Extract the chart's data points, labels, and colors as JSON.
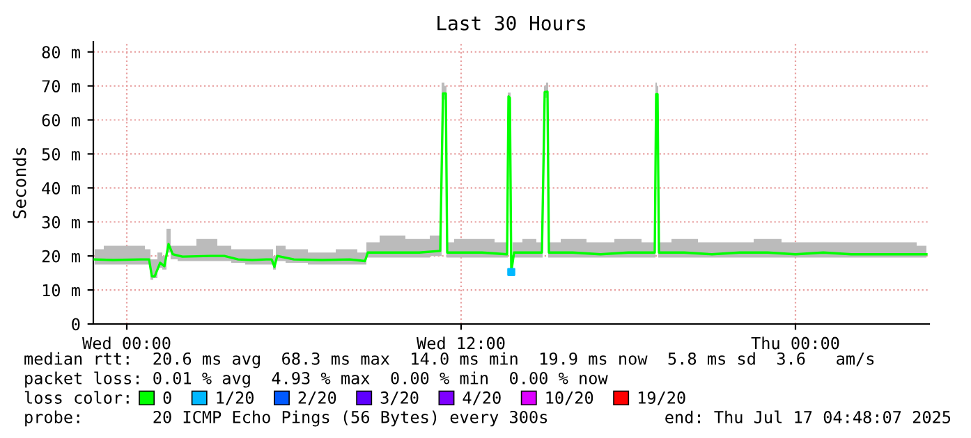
{
  "chart_data": {
    "type": "line",
    "title": "Last 30 Hours",
    "ylabel": "Seconds",
    "x": [
      "2025-07-15T22:51",
      "2025-07-15T23:30",
      "2025-07-16T00:30",
      "2025-07-16T00:48",
      "2025-07-16T00:54",
      "2025-07-16T01:00",
      "2025-07-16T01:12",
      "2025-07-16T01:21",
      "2025-07-16T01:30",
      "2025-07-16T01:39",
      "2025-07-16T02:00",
      "2025-07-16T03:00",
      "2025-07-16T03:30",
      "2025-07-16T04:00",
      "2025-07-16T04:30",
      "2025-07-16T05:00",
      "2025-07-16T05:12",
      "2025-07-16T05:18",
      "2025-07-16T05:24",
      "2025-07-16T06:00",
      "2025-07-16T07:00",
      "2025-07-16T08:00",
      "2025-07-16T08:33",
      "2025-07-16T08:39",
      "2025-07-16T09:30",
      "2025-07-16T10:30",
      "2025-07-16T11:15",
      "2025-07-16T11:21",
      "2025-07-16T11:27",
      "2025-07-16T11:30",
      "2025-07-16T12:00",
      "2025-07-16T12:45",
      "2025-07-16T13:39",
      "2025-07-16T13:42",
      "2025-07-16T13:45",
      "2025-07-16T13:48",
      "2025-07-16T13:54",
      "2025-07-16T14:30",
      "2025-07-16T14:54",
      "2025-07-16T14:57",
      "2025-07-16T15:00",
      "2025-07-16T15:06",
      "2025-07-16T15:09",
      "2025-07-16T16:00",
      "2025-07-16T17:00",
      "2025-07-16T18:00",
      "2025-07-16T18:57",
      "2025-07-16T19:00",
      "2025-07-16T19:03",
      "2025-07-16T19:06",
      "2025-07-16T20:00",
      "2025-07-16T21:00",
      "2025-07-16T22:00",
      "2025-07-16T23:00",
      "2025-07-17T00:00",
      "2025-07-17T01:00",
      "2025-07-17T02:00",
      "2025-07-17T03:00",
      "2025-07-17T04:00",
      "2025-07-17T04:42"
    ],
    "series": [
      {
        "name": "0",
        "color": "#00ff00",
        "values": [
          19.0,
          18.8,
          19.0,
          19.0,
          14.0,
          14.0,
          18.0,
          17.0,
          23.5,
          20.5,
          19.8,
          20.0,
          20.0,
          19.0,
          18.8,
          19.0,
          19.0,
          16.8,
          20.0,
          19.0,
          18.8,
          19.0,
          18.5,
          21.0,
          21.0,
          21.0,
          21.5,
          67.8,
          67.8,
          21.0,
          21.0,
          21.0,
          20.5,
          66.9,
          66.5,
          15.3,
          21.0,
          21.0,
          21.0,
          44.3,
          68.2,
          68.3,
          21.0,
          21.0,
          20.5,
          21.0,
          21.0,
          67.6,
          67.6,
          21.0,
          21.0,
          20.5,
          21.0,
          21.0,
          20.5,
          21.0,
          20.5,
          20.5,
          20.5,
          20.5
        ],
        "lower": [
          17.5,
          17.5,
          17.5,
          17.5,
          13.0,
          13.5,
          16.5,
          16.0,
          21.0,
          19.0,
          18.5,
          18.5,
          18.5,
          18.0,
          17.5,
          17.5,
          17.5,
          16.0,
          18.5,
          18.0,
          17.5,
          17.5,
          17.5,
          19.5,
          19.5,
          19.5,
          20.0,
          66.0,
          66.0,
          19.5,
          19.5,
          19.5,
          19.5,
          65.0,
          65.0,
          14.5,
          19.5,
          19.5,
          19.5,
          43.0,
          66.5,
          66.5,
          19.5,
          19.5,
          19.5,
          19.5,
          19.5,
          66.0,
          66.0,
          19.5,
          19.5,
          19.5,
          19.5,
          19.5,
          19.5,
          19.5,
          19.5,
          19.5,
          19.5,
          19.5
        ],
        "upper": [
          22,
          23,
          23,
          22,
          19,
          19,
          21,
          20,
          28,
          23,
          23,
          25,
          23,
          22,
          22,
          22,
          22,
          20,
          23,
          22,
          21,
          22,
          21,
          24,
          26,
          25,
          26,
          71,
          70,
          24,
          25,
          25,
          24,
          68,
          68,
          17,
          24,
          25,
          24,
          46,
          70,
          71,
          24,
          25,
          24,
          25,
          24,
          71,
          70,
          24,
          25,
          24,
          24,
          25,
          24,
          24,
          24,
          24,
          24,
          23
        ]
      },
      {
        "name": "1/20",
        "color": "#00b8ff",
        "type": "scatter",
        "marker": "square",
        "x": [
          "2025-07-16T13:48"
        ],
        "values": [
          15.3
        ]
      },
      {
        "name": "2/20",
        "color": "#0059ff",
        "values": [
          null,
          null,
          null,
          null,
          null,
          null,
          null,
          null,
          null,
          null,
          null,
          null,
          null,
          null,
          null,
          null,
          null,
          null,
          null,
          null,
          null,
          null,
          null,
          null,
          null,
          null,
          null,
          null,
          null,
          null,
          null,
          null,
          null,
          null,
          null,
          null,
          null,
          null,
          null,
          null,
          null,
          null,
          null,
          null,
          null,
          null,
          null,
          null,
          null,
          null,
          null,
          null,
          null,
          null,
          null,
          null,
          null,
          null,
          null,
          null
        ]
      },
      {
        "name": "3/20",
        "color": "#5e00ff",
        "values": [
          null,
          null,
          null,
          null,
          null,
          null,
          null,
          null,
          null,
          null,
          null,
          null,
          null,
          null,
          null,
          null,
          null,
          null,
          null,
          null,
          null,
          null,
          null,
          null,
          null,
          null,
          null,
          null,
          null,
          null,
          null,
          null,
          null,
          null,
          null,
          null,
          null,
          null,
          null,
          null,
          null,
          null,
          null,
          null,
          null,
          null,
          null,
          null,
          null,
          null,
          null,
          null,
          null,
          null,
          null,
          null,
          null,
          null,
          null,
          null
        ]
      },
      {
        "name": "4/20",
        "color": "#7e00ff",
        "values": [
          null,
          null,
          null,
          null,
          null,
          null,
          null,
          null,
          null,
          null,
          null,
          null,
          null,
          null,
          null,
          null,
          null,
          null,
          null,
          null,
          null,
          null,
          null,
          null,
          null,
          null,
          null,
          null,
          null,
          null,
          null,
          null,
          null,
          null,
          null,
          null,
          null,
          null,
          null,
          null,
          null,
          null,
          null,
          null,
          null,
          null,
          null,
          null,
          null,
          null,
          null,
          null,
          null,
          null,
          null,
          null,
          null,
          null,
          null,
          null
        ]
      },
      {
        "name": "10/20",
        "color": "#dd00ff",
        "values": [
          null,
          null,
          null,
          null,
          null,
          null,
          null,
          null,
          null,
          null,
          null,
          null,
          null,
          null,
          null,
          null,
          null,
          null,
          null,
          null,
          null,
          null,
          null,
          null,
          null,
          null,
          null,
          null,
          null,
          null,
          null,
          null,
          null,
          null,
          null,
          null,
          null,
          null,
          null,
          null,
          null,
          null,
          null,
          null,
          null,
          null,
          null,
          null,
          null,
          null,
          null,
          null,
          null,
          null,
          null,
          null,
          null,
          null,
          null,
          null
        ]
      },
      {
        "name": "19/20",
        "color": "#ff0000",
        "values": [
          null,
          null,
          null,
          null,
          null,
          null,
          null,
          null,
          null,
          null,
          null,
          null,
          null,
          null,
          null,
          null,
          null,
          null,
          null,
          null,
          null,
          null,
          null,
          null,
          null,
          null,
          null,
          null,
          null,
          null,
          null,
          null,
          null,
          null,
          null,
          null,
          null,
          null,
          null,
          null,
          null,
          null,
          null,
          null,
          null,
          null,
          null,
          null,
          null,
          null,
          null,
          null,
          null,
          null,
          null,
          null,
          null,
          null,
          null,
          null
        ]
      }
    ],
    "xlim": [
      "2025-07-15T22:48",
      "2025-07-17T04:48"
    ],
    "xticks": [
      {
        "value": "2025-07-16T00:00",
        "label": "Wed 00:00"
      },
      {
        "value": "2025-07-16T12:00",
        "label": "Wed 12:00"
      },
      {
        "value": "2025-07-17T00:00",
        "label": "Thu 00:00"
      }
    ],
    "ylim": [
      0,
      83
    ],
    "yticks": [
      0,
      {
        "value": 10,
        "label": "10 m"
      },
      {
        "value": 20,
        "label": "20 m"
      },
      {
        "value": 30,
        "label": "30 m"
      },
      {
        "value": 40,
        "label": "40 m"
      },
      {
        "value": 50,
        "label": "50 m"
      },
      {
        "value": 60,
        "label": "60 m"
      },
      {
        "value": 70,
        "label": "70 m"
      },
      {
        "value": 80,
        "label": "80 m"
      }
    ],
    "grid": true,
    "legend": "bottom",
    "legend_title": "loss color:",
    "marker": "none",
    "line_style": "solid",
    "annotations": [
      "median rtt:  20.6 ms avg  68.3 ms max  14.0 ms min  19.9 ms now  5.8 ms sd  3.6   am/s",
      "packet loss: 0.01 % avg  4.93 % max  0.00 % min  0.00 % now",
      "probe:       20 ICMP Echo Pings (56 Bytes) every 300s",
      "end: Thu Jul 17 04:48:07 2025"
    ]
  }
}
